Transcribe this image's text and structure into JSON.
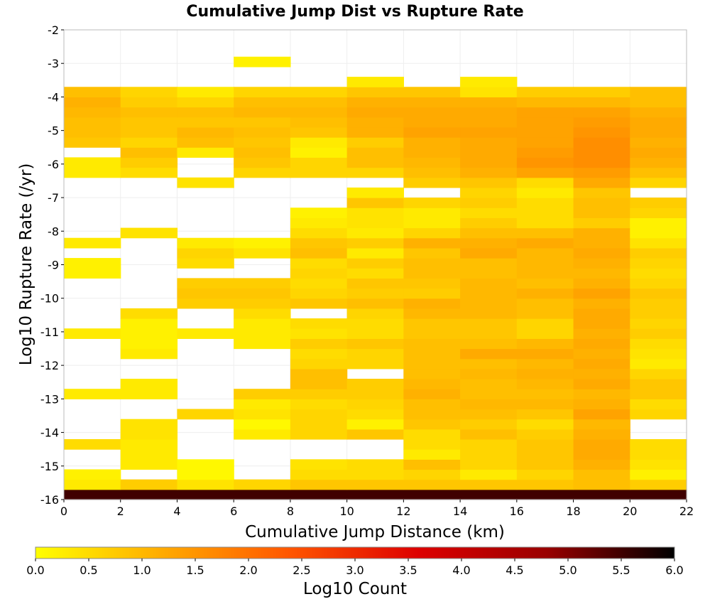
{
  "chart_data": {
    "type": "heatmap",
    "title": "Cumulative Jump Dist vs Rupture Rate",
    "xlabel": "Cumulative Jump Distance (km)",
    "ylabel": "Log10 Rupture Rate (/yr)",
    "xlim": [
      0,
      22
    ],
    "ylim": [
      -16,
      -2
    ],
    "x_ticks": [
      "0",
      "2",
      "4",
      "6",
      "8",
      "10",
      "12",
      "14",
      "16",
      "18",
      "20",
      "22"
    ],
    "y_ticks": [
      "-2",
      "-3",
      "-4",
      "-5",
      "-6",
      "-7",
      "-8",
      "-9",
      "-10",
      "-11",
      "-12",
      "-13",
      "-14",
      "-15",
      "-16"
    ],
    "colorbar": {
      "label": "Log10 Count",
      "min": 0,
      "max": 6,
      "ticks": [
        "0.0",
        "0.5",
        "1.0",
        "1.5",
        "2.0",
        "2.5",
        "3.0",
        "3.5",
        "4.0",
        "4.5",
        "5.0",
        "5.5",
        "6.0"
      ],
      "colormap": [
        "#ffff00",
        "#ffaa00",
        "#ff5500",
        "#dd0000",
        "#990000",
        "#000000"
      ]
    },
    "x_bin_width": 2,
    "y_bin_width": 0.3,
    "y_bin_start": -16,
    "grid": true,
    "values": [
      [
        5.5,
        5.5,
        5.5,
        5.5,
        5.5,
        5.5,
        5.5,
        5.5,
        5.5,
        5.5,
        5.5
      ],
      [
        0.3,
        0.7,
        0.4,
        0.6,
        0.8,
        0.8,
        0.8,
        0.8,
        0.8,
        0.9,
        0.7
      ],
      [
        0.2,
        null,
        0.1,
        null,
        0.5,
        0.5,
        0.6,
        0.3,
        0.6,
        0.9,
        0.2
      ],
      [
        null,
        0.3,
        0.1,
        null,
        0.4,
        0.5,
        0.9,
        0.6,
        0.8,
        1.1,
        0.4
      ],
      [
        null,
        0.3,
        null,
        null,
        null,
        null,
        0.3,
        0.6,
        0.8,
        1.2,
        0.5
      ],
      [
        0.5,
        0.3,
        null,
        null,
        null,
        null,
        0.5,
        0.6,
        0.8,
        1.2,
        0.5
      ],
      [
        null,
        0.4,
        null,
        0.3,
        0.6,
        0.8,
        0.5,
        0.9,
        0.7,
        1.1,
        null
      ],
      [
        null,
        0.4,
        null,
        0.1,
        0.6,
        0.2,
        0.8,
        0.7,
        0.5,
        1.0,
        null
      ],
      [
        null,
        null,
        0.6,
        0.4,
        0.6,
        0.5,
        0.9,
        0.9,
        0.8,
        1.3,
        0.6
      ],
      [
        null,
        null,
        null,
        0.3,
        0.5,
        0.6,
        0.9,
        1.0,
        1.0,
        1.1,
        0.5
      ],
      [
        0.3,
        0.3,
        null,
        0.7,
        0.7,
        0.7,
        1.1,
        0.9,
        0.9,
        1.0,
        0.8
      ],
      [
        null,
        0.3,
        null,
        null,
        0.9,
        0.7,
        1.0,
        0.9,
        1.0,
        1.2,
        0.8
      ],
      [
        null,
        null,
        null,
        null,
        0.9,
        null,
        0.9,
        1.0,
        1.1,
        1.1,
        0.6
      ],
      [
        null,
        null,
        null,
        null,
        0.6,
        0.6,
        0.9,
        0.9,
        1.0,
        1.2,
        0.3
      ],
      [
        null,
        0.3,
        null,
        null,
        0.5,
        0.6,
        0.9,
        1.2,
        1.2,
        1.1,
        0.4
      ],
      [
        null,
        0.2,
        null,
        0.3,
        0.7,
        0.8,
        0.9,
        0.9,
        1.0,
        1.2,
        0.5
      ],
      [
        0.3,
        0.2,
        0.3,
        0.3,
        0.4,
        0.5,
        0.8,
        0.8,
        0.6,
        1.1,
        0.7
      ],
      [
        null,
        0.2,
        null,
        0.3,
        0.5,
        0.5,
        0.8,
        0.8,
        0.6,
        1.2,
        0.6
      ],
      [
        null,
        0.5,
        null,
        0.5,
        null,
        0.6,
        1.0,
        1.0,
        0.9,
        1.2,
        0.7
      ],
      [
        null,
        null,
        0.7,
        0.7,
        0.8,
        0.9,
        1.1,
        1.0,
        0.9,
        1.1,
        0.7
      ],
      [
        null,
        null,
        0.8,
        0.8,
        0.6,
        0.7,
        0.7,
        1.0,
        1.1,
        1.3,
        0.8
      ],
      [
        null,
        null,
        0.7,
        0.7,
        0.5,
        0.8,
        0.8,
        1.0,
        0.9,
        1.1,
        0.6
      ],
      [
        0.2,
        null,
        null,
        null,
        0.6,
        0.5,
        0.9,
        0.9,
        1.0,
        1.0,
        0.5
      ],
      [
        0.2,
        null,
        0.5,
        null,
        0.5,
        0.7,
        0.9,
        0.9,
        1.0,
        1.1,
        0.6
      ],
      [
        null,
        null,
        0.6,
        0.4,
        0.9,
        0.3,
        0.8,
        1.2,
        1.0,
        1.2,
        0.7
      ],
      [
        0.3,
        null,
        0.3,
        0.2,
        0.8,
        0.7,
        1.1,
        1.1,
        1.2,
        1.1,
        0.4
      ],
      [
        null,
        0.4,
        null,
        null,
        0.5,
        0.3,
        0.6,
        0.9,
        0.9,
        1.1,
        0.2
      ],
      [
        null,
        null,
        null,
        null,
        0.3,
        0.4,
        0.3,
        0.7,
        0.5,
        0.7,
        0.2
      ],
      [
        null,
        null,
        null,
        null,
        0.2,
        0.4,
        0.3,
        0.5,
        0.5,
        0.9,
        0.6
      ],
      [
        null,
        null,
        null,
        null,
        null,
        0.8,
        0.6,
        0.7,
        0.5,
        0.9,
        0.7
      ],
      [
        null,
        null,
        null,
        null,
        null,
        0.3,
        null,
        0.6,
        0.3,
        0.8,
        null
      ],
      [
        null,
        null,
        0.4,
        null,
        null,
        null,
        0.7,
        0.8,
        0.5,
        1.2,
        0.6
      ],
      [
        0.3,
        0.5,
        null,
        0.6,
        0.6,
        0.6,
        0.9,
        1.1,
        1.3,
        1.4,
        0.9
      ],
      [
        0.3,
        0.7,
        null,
        0.8,
        0.6,
        0.9,
        1.0,
        1.2,
        1.5,
        1.6,
        1.1
      ],
      [
        null,
        0.9,
        0.3,
        0.9,
        0.2,
        0.9,
        1.1,
        1.2,
        1.4,
        1.6,
        1.2
      ],
      [
        0.8,
        0.6,
        0.9,
        0.8,
        0.3,
        0.7,
        1.1,
        1.2,
        1.3,
        1.6,
        1.1
      ],
      [
        0.9,
        0.8,
        1.0,
        0.9,
        0.8,
        1.1,
        1.3,
        1.3,
        1.3,
        1.5,
        1.2
      ],
      [
        0.9,
        0.8,
        0.8,
        0.8,
        0.9,
        1.1,
        1.2,
        1.2,
        1.3,
        1.4,
        1.2
      ],
      [
        1.0,
        0.9,
        0.9,
        1.0,
        1.0,
        1.2,
        1.2,
        1.2,
        1.3,
        1.3,
        1.1
      ],
      [
        1.1,
        0.7,
        0.6,
        0.9,
        0.9,
        1.1,
        1.1,
        1.1,
        1.0,
        1.0,
        0.9
      ],
      [
        0.9,
        0.6,
        0.3,
        0.6,
        0.6,
        0.8,
        0.8,
        0.4,
        0.7,
        0.7,
        0.9
      ],
      [
        null,
        null,
        null,
        null,
        null,
        0.3,
        null,
        0.3,
        null,
        null,
        null
      ],
      [
        null,
        null,
        null,
        null,
        null,
        null,
        null,
        null,
        null,
        null,
        null
      ],
      [
        null,
        null,
        null,
        0.2,
        null,
        null,
        null,
        null,
        null,
        null,
        null
      ],
      [
        null,
        null,
        null,
        null,
        null,
        null,
        null,
        null,
        null,
        null,
        null
      ],
      [
        null,
        null,
        null,
        null,
        null,
        null,
        null,
        null,
        null,
        null,
        null
      ],
      [
        null,
        null,
        null,
        null,
        null,
        null,
        null,
        null,
        null,
        null,
        null
      ]
    ]
  }
}
